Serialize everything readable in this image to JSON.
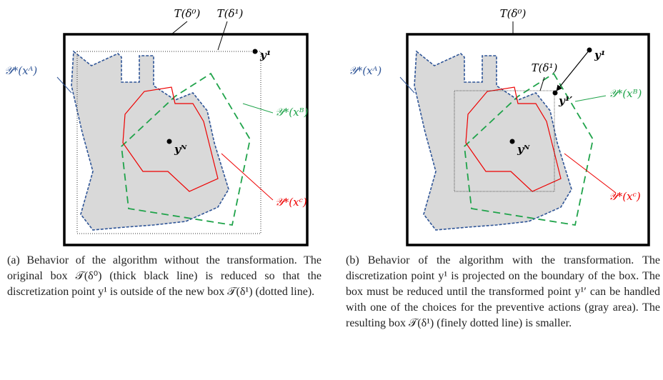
{
  "panels": [
    {
      "labels": {
        "box_outer": "T(δ⁰)",
        "box_inner": "T(δ¹)",
        "point": "y¹",
        "set_a": "𝒴*(xᴬ)",
        "set_b": "𝒴*(xᴮ)",
        "set_c": "𝒴*(xᶜ)",
        "nadir": "yᴺ"
      },
      "caption": "(a) Behavior of the algorithm without the transformation. The original box 𝒯(δ⁰) (thick black line) is reduced so that the discretization point y¹ is outside of the new box 𝒯(δ¹) (dotted line)."
    },
    {
      "labels": {
        "box_outer": "T(δ⁰)",
        "box_inner": "T(δ¹)",
        "point": "y¹",
        "projected": "y¹′",
        "set_a": "𝒴*(xᴬ)",
        "set_b": "𝒴*(xᴮ)",
        "set_c": "𝒴*(xᶜ)",
        "nadir": "yᴺ"
      },
      "caption": "(b) Behavior of the algorithm with the transformation. The discretization point y¹ is projected on the boundary of the box. The box must be reduced until the transformed point y¹′ can be handled with one of the choices for the preventive actions (gray area). The resulting box 𝒯(δ¹) (finely dotted line) is smaller."
    }
  ]
}
